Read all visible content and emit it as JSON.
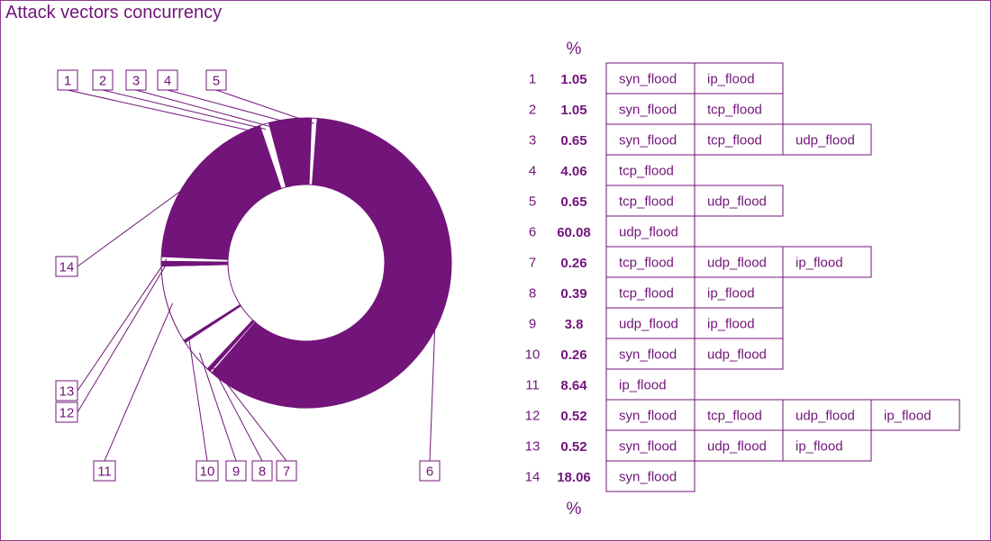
{
  "title": "Attack vectors concurrency",
  "percent_header": "%",
  "percent_footer": "%",
  "colors": {
    "accent": "#72147a",
    "filled": "#72147a",
    "empty": "#ffffff",
    "text": "#72147a"
  },
  "chart_data": {
    "type": "pie",
    "title": "Attack vectors concurrency",
    "unit": "%",
    "slices": [
      {
        "id": "1",
        "value": 1.05,
        "vectors": [
          "syn_flood",
          "ip_flood"
        ]
      },
      {
        "id": "2",
        "value": 1.05,
        "vectors": [
          "syn_flood",
          "tcp_flood"
        ]
      },
      {
        "id": "3",
        "value": 0.65,
        "vectors": [
          "syn_flood",
          "tcp_flood",
          "udp_flood"
        ]
      },
      {
        "id": "4",
        "value": 4.06,
        "vectors": [
          "tcp_flood"
        ]
      },
      {
        "id": "5",
        "value": 0.65,
        "vectors": [
          "tcp_flood",
          "udp_flood"
        ]
      },
      {
        "id": "6",
        "value": 60.08,
        "vectors": [
          "udp_flood"
        ]
      },
      {
        "id": "7",
        "value": 0.26,
        "vectors": [
          "tcp_flood",
          "udp_flood",
          "ip_flood"
        ]
      },
      {
        "id": "8",
        "value": 0.39,
        "vectors": [
          "tcp_flood",
          "ip_flood"
        ]
      },
      {
        "id": "9",
        "value": 3.8,
        "vectors": [
          "udp_flood",
          "ip_flood"
        ]
      },
      {
        "id": "10",
        "value": 0.26,
        "vectors": [
          "syn_flood",
          "udp_flood"
        ]
      },
      {
        "id": "11",
        "value": 8.64,
        "vectors": [
          "ip_flood"
        ]
      },
      {
        "id": "12",
        "value": 0.52,
        "vectors": [
          "syn_flood",
          "tcp_flood",
          "udp_flood",
          "ip_flood"
        ]
      },
      {
        "id": "13",
        "value": 0.52,
        "vectors": [
          "syn_flood",
          "udp_flood",
          "ip_flood"
        ]
      },
      {
        "id": "14",
        "value": 18.06,
        "vectors": [
          "syn_flood"
        ]
      }
    ],
    "filled_slices": [
      "1",
      "3",
      "4",
      "6",
      "8",
      "10",
      "12",
      "14"
    ]
  }
}
